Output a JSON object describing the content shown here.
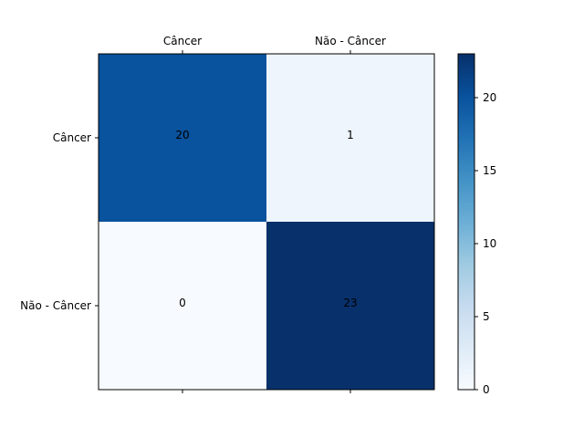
{
  "chart_data": {
    "type": "heatmap",
    "title": "",
    "xlabel": "",
    "ylabel": "",
    "x_categories": [
      "Câncer",
      "Não - Câncer"
    ],
    "y_categories": [
      "Câncer",
      "Não - Câncer"
    ],
    "values": [
      [
        20,
        1
      ],
      [
        0,
        23
      ]
    ],
    "colormap": "Blues",
    "colorbar": {
      "min": 0,
      "max": 23,
      "ticks": [
        0,
        5,
        10,
        15,
        20
      ]
    },
    "x_tick_position": "top",
    "grid": false
  }
}
